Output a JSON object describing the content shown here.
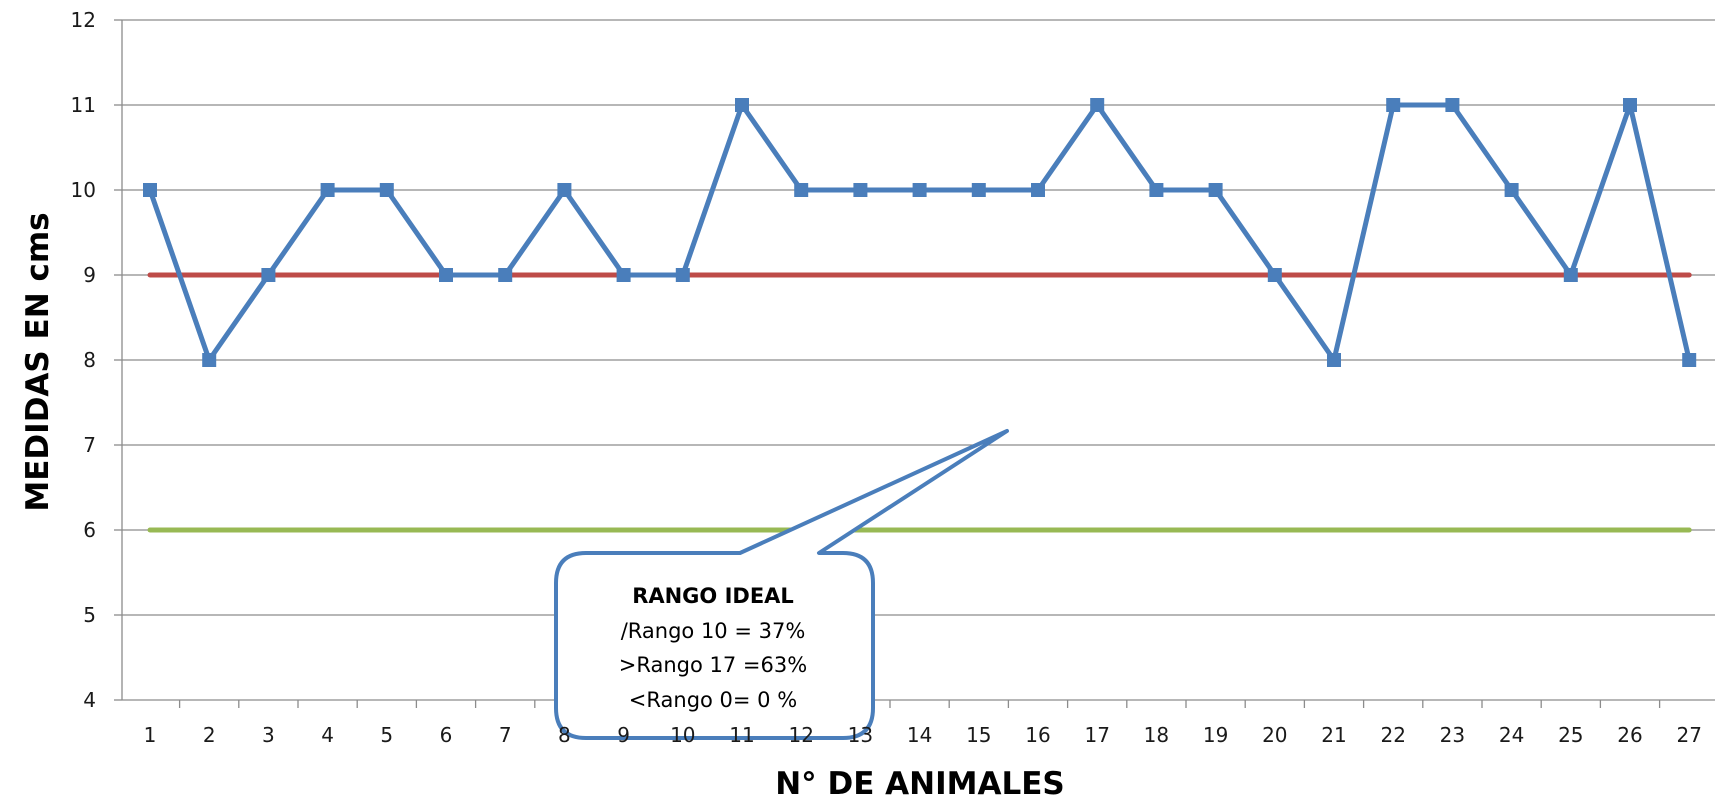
{
  "chart_data": {
    "type": "line",
    "title": "",
    "xlabel": "N° DE ANIMALES",
    "ylabel": "MEDIDAS EN cms",
    "x": [
      1,
      2,
      3,
      4,
      5,
      6,
      7,
      8,
      9,
      10,
      11,
      12,
      13,
      14,
      15,
      16,
      17,
      18,
      19,
      20,
      21,
      22,
      23,
      24,
      25,
      26,
      27
    ],
    "ylim": [
      4,
      12
    ],
    "yticks": [
      4,
      5,
      6,
      7,
      8,
      9,
      10,
      11,
      12
    ],
    "grid": true,
    "legend": "none",
    "series": [
      {
        "values": [
          10,
          8,
          9,
          10,
          10,
          9,
          9,
          10,
          9,
          9,
          11,
          10,
          10,
          10,
          10,
          10,
          11,
          10,
          10,
          9,
          8,
          11,
          11,
          10,
          9,
          11,
          8
        ],
        "color": "#4a7ebb",
        "marker": "square"
      },
      {
        "values": [
          9,
          9,
          9,
          9,
          9,
          9,
          9,
          9,
          9,
          9,
          9,
          9,
          9,
          9,
          9,
          9,
          9,
          9,
          9,
          9,
          9,
          9,
          9,
          9,
          9,
          9,
          9
        ],
        "color": "#be4b48",
        "marker": "none"
      },
      {
        "values": [
          6,
          6,
          6,
          6,
          6,
          6,
          6,
          6,
          6,
          6,
          6,
          6,
          6,
          6,
          6,
          6,
          6,
          6,
          6,
          6,
          6,
          6,
          6,
          6,
          6,
          6,
          6
        ],
        "color": "#98b954",
        "marker": "none"
      }
    ],
    "annotations": [
      {
        "title": "RANGO IDEAL",
        "lines": [
          "/Rango  10 = 37%",
          ">Rango 17 =63%",
          "<Rango 0= 0 %"
        ],
        "border_color": "#4a7ebb"
      }
    ]
  }
}
